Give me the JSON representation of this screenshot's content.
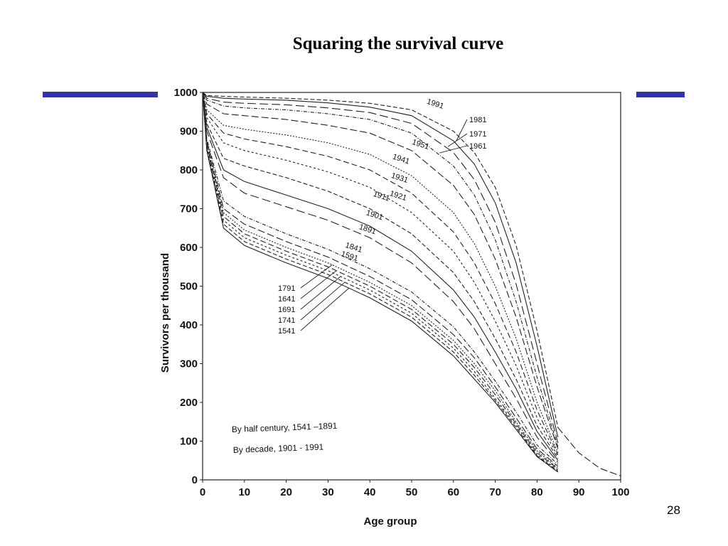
{
  "slide": {
    "title": "Squaring the survival curve",
    "page_number": "28",
    "accent_color": "#3333aa"
  },
  "chart_data": {
    "type": "line",
    "xlabel": "Age group",
    "ylabel": "Survivors per thousand",
    "xlim": [
      0,
      100
    ],
    "ylim": [
      0,
      1000
    ],
    "xticks": [
      "0",
      "10",
      "20",
      "30",
      "40",
      "50",
      "60",
      "70",
      "80",
      "90",
      "100"
    ],
    "yticks": [
      "0",
      "100",
      "200",
      "300",
      "400",
      "500",
      "600",
      "700",
      "800",
      "900",
      "1000"
    ],
    "grid": false,
    "notes": [
      "By half century, 1541 –1891",
      "By decade, 1901 - 1991"
    ],
    "x": [
      0,
      1,
      5,
      10,
      20,
      30,
      40,
      50,
      60,
      65,
      70,
      75,
      80,
      85
    ],
    "series": [
      {
        "name": "1541",
        "values": [
          1000,
          850,
          650,
          605,
          560,
          520,
          470,
          410,
          320,
          260,
          200,
          130,
          60,
          20
        ]
      },
      {
        "name": "1741",
        "values": [
          1000,
          855,
          660,
          615,
          570,
          530,
          480,
          420,
          330,
          270,
          205,
          135,
          62,
          22
        ]
      },
      {
        "name": "1691",
        "values": [
          1000,
          860,
          670,
          625,
          580,
          540,
          490,
          430,
          340,
          280,
          210,
          140,
          65,
          25
        ]
      },
      {
        "name": "1641",
        "values": [
          1000,
          865,
          680,
          635,
          590,
          550,
          500,
          440,
          350,
          290,
          220,
          145,
          70,
          28
        ]
      },
      {
        "name": "1791",
        "values": [
          1000,
          870,
          690,
          645,
          600,
          560,
          510,
          450,
          360,
          300,
          230,
          150,
          75,
          30
        ]
      },
      {
        "name": "1591",
        "values": [
          1000,
          875,
          700,
          660,
          615,
          575,
          525,
          465,
          375,
          315,
          240,
          160,
          80,
          35
        ]
      },
      {
        "name": "1841",
        "values": [
          1000,
          880,
          720,
          680,
          635,
          595,
          545,
          485,
          395,
          330,
          255,
          175,
          90,
          40
        ]
      },
      {
        "name": "1891",
        "values": [
          1000,
          900,
          780,
          740,
          705,
          670,
          625,
          560,
          460,
          390,
          300,
          210,
          110,
          45
        ]
      },
      {
        "name": "1901",
        "values": [
          1000,
          910,
          800,
          770,
          735,
          700,
          655,
          590,
          490,
          420,
          330,
          235,
          125,
          50
        ]
      },
      {
        "name": "1911",
        "values": [
          1000,
          920,
          830,
          810,
          780,
          745,
          700,
          635,
          535,
          460,
          365,
          260,
          140,
          55
        ]
      },
      {
        "name": "1921",
        "values": [
          1000,
          935,
          870,
          850,
          825,
          795,
          755,
          690,
          590,
          510,
          410,
          295,
          160,
          60
        ]
      },
      {
        "name": "1931",
        "values": [
          1000,
          945,
          895,
          880,
          860,
          835,
          800,
          740,
          640,
          560,
          455,
          330,
          180,
          65
        ]
      },
      {
        "name": "1941",
        "values": [
          1000,
          955,
          915,
          905,
          890,
          870,
          840,
          785,
          690,
          610,
          500,
          365,
          200,
          70
        ]
      },
      {
        "name": "1951",
        "values": [
          1000,
          970,
          945,
          940,
          930,
          915,
          895,
          850,
          760,
          685,
          570,
          420,
          240,
          80
        ]
      },
      {
        "name": "1961",
        "values": [
          1000,
          980,
          965,
          960,
          955,
          945,
          930,
          895,
          810,
          735,
          620,
          460,
          265,
          85
        ]
      },
      {
        "name": "1971",
        "values": [
          1000,
          985,
          975,
          972,
          968,
          960,
          948,
          920,
          845,
          775,
          665,
          505,
          300,
          95
        ]
      },
      {
        "name": "1981",
        "values": [
          1000,
          990,
          985,
          983,
          980,
          973,
          962,
          940,
          875,
          815,
          715,
          560,
          345,
          110
        ]
      },
      {
        "name": "1991",
        "values": [
          1000,
          992,
          990,
          988,
          985,
          980,
          972,
          955,
          900,
          845,
          755,
          605,
          385,
          135
        ],
        "extension": {
          "x": [
            85,
            90,
            95,
            100
          ],
          "values": [
            135,
            70,
            30,
            10
          ]
        }
      }
    ]
  }
}
